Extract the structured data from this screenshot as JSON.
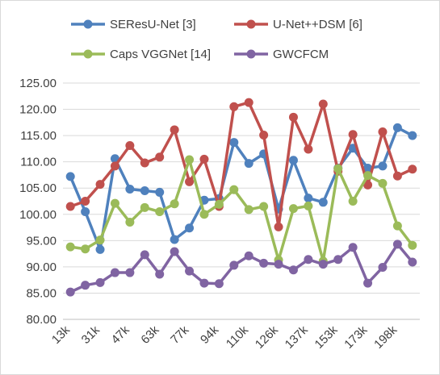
{
  "chart_data": {
    "type": "line",
    "title": "",
    "xlabel": "",
    "ylabel": "",
    "ylim": [
      80,
      125
    ],
    "yticks": [
      "80.00",
      "85.00",
      "90.00",
      "95.00",
      "100.00",
      "105.00",
      "110.00",
      "115.00",
      "120.00",
      "125.00"
    ],
    "grid": "horizontal",
    "legend_position": "top",
    "x_tick_labels": [
      "13k",
      "31k",
      "47k",
      "63k",
      "77k",
      "94k",
      "110k",
      "126k",
      "137k",
      "153k",
      "173k",
      "198k"
    ],
    "n_points": 24,
    "series": [
      {
        "name": "SEResU-Net [3]",
        "color": "#4f81bd",
        "values": [
          107.2,
          100.5,
          93.3,
          110.6,
          104.8,
          104.5,
          104.2,
          95.2,
          97.4,
          102.7,
          103.0,
          113.7,
          109.7,
          111.5,
          101.0,
          110.3,
          103.1,
          102.3,
          108.8,
          112.6,
          108.8,
          109.2,
          116.5,
          115.0
        ]
      },
      {
        "name": "U-Net++DSM [6]",
        "color": "#c0504d",
        "values": [
          101.5,
          102.5,
          105.7,
          109.2,
          113.1,
          109.8,
          110.9,
          116.1,
          106.2,
          110.5,
          101.5,
          120.5,
          121.3,
          115.1,
          97.6,
          118.5,
          112.4,
          121.0,
          108.2,
          115.2,
          105.6,
          115.7,
          107.3,
          108.6
        ]
      },
      {
        "name": "Caps VGGNet [14]",
        "color": "#9bbb59",
        "values": [
          93.8,
          93.4,
          95.1,
          102.1,
          98.5,
          101.3,
          100.5,
          102.0,
          110.4,
          100.0,
          101.9,
          104.7,
          100.9,
          101.5,
          91.3,
          101.1,
          101.6,
          91.1,
          108.7,
          102.5,
          107.4,
          105.9,
          97.8,
          94.1
        ]
      },
      {
        "name": "GWCFCM",
        "color": "#8064a2",
        "values": [
          85.2,
          86.5,
          87.0,
          88.9,
          88.9,
          92.3,
          88.6,
          92.9,
          89.2,
          86.9,
          86.8,
          90.3,
          92.1,
          90.7,
          90.5,
          89.4,
          91.4,
          90.5,
          91.4,
          93.7,
          86.9,
          89.9,
          94.3,
          90.9
        ]
      }
    ]
  }
}
